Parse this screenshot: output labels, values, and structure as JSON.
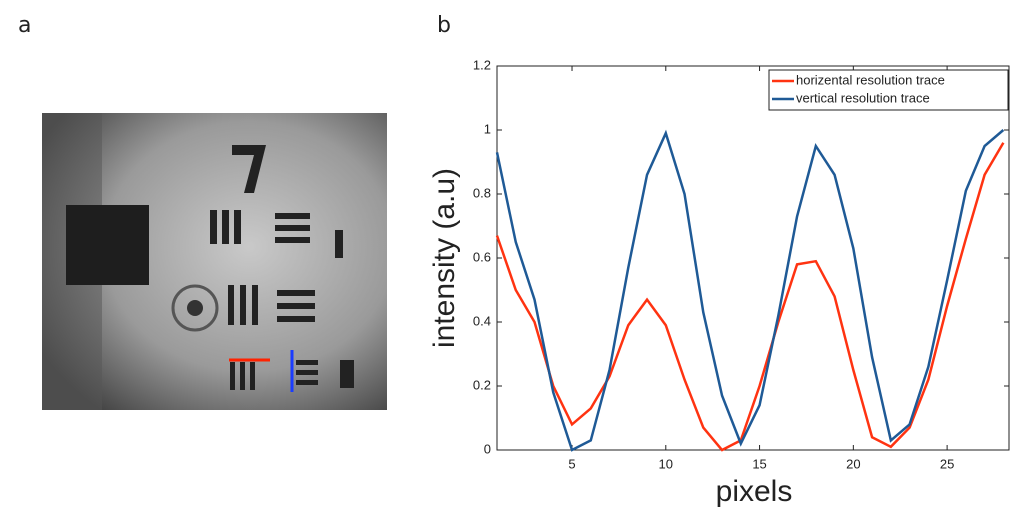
{
  "panel_labels": [
    "a",
    "b"
  ],
  "chart_data": {
    "type": "line",
    "x_label": "pixels",
    "y_label": "intensity  (a.u)",
    "x": [
      1,
      2,
      3,
      4,
      5,
      6,
      7,
      8,
      9,
      10,
      11,
      12,
      13,
      14,
      15,
      16,
      17,
      18,
      19,
      20,
      21,
      22,
      23,
      24,
      25,
      26,
      27,
      28
    ],
    "series": [
      {
        "name": "horizental resolution trace",
        "color": "#ff3311",
        "values": [
          0.67,
          0.5,
          0.4,
          0.2,
          0.08,
          0.13,
          0.23,
          0.39,
          0.47,
          0.39,
          0.22,
          0.07,
          0.0,
          0.03,
          0.2,
          0.4,
          0.58,
          0.59,
          0.48,
          0.25,
          0.04,
          0.01,
          0.07,
          0.22,
          0.45,
          0.66,
          0.86,
          0.96
        ]
      },
      {
        "name": "vertical resolution trace",
        "color": "#1f5a96",
        "values": [
          0.93,
          0.65,
          0.47,
          0.18,
          0.0,
          0.03,
          0.25,
          0.57,
          0.86,
          0.99,
          0.8,
          0.43,
          0.17,
          0.02,
          0.14,
          0.42,
          0.73,
          0.95,
          0.86,
          0.63,
          0.29,
          0.03,
          0.08,
          0.26,
          0.53,
          0.81,
          0.95,
          1.0
        ]
      }
    ],
    "xlim": [
      1,
      28.3
    ],
    "ylim": [
      0,
      1.2
    ],
    "xticks": [
      5,
      10,
      15,
      20,
      25
    ],
    "yticks": [
      0,
      0.2,
      0.4,
      0.6,
      0.8,
      1,
      1.2
    ],
    "legend": "upper right"
  }
}
